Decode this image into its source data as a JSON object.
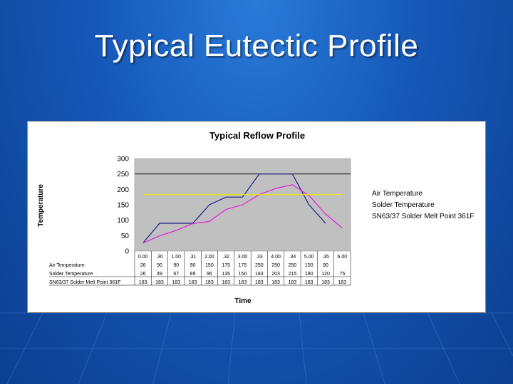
{
  "slide": {
    "title": "Typical Eutectic Profile",
    "background_color": "#1558b8"
  },
  "chart_data": {
    "type": "line",
    "title": "Typical Reflow Profile",
    "xlabel": "Time",
    "ylabel": "Temperature",
    "ylim": [
      0,
      300
    ],
    "yticks": [
      0,
      50,
      100,
      150,
      200,
      250,
      300
    ],
    "grid": false,
    "plot_background": "#c0c0c0",
    "legend_position": "right",
    "categories": [
      "0.00",
      ".30",
      "1.00",
      ".31",
      "2.00",
      ".32",
      "3.00",
      ".33",
      "4.00",
      ".34",
      "5.00",
      ".35",
      "6.00"
    ],
    "series": [
      {
        "name": "Air Temperature",
        "table_label": "Air Temperature",
        "color": "#1c1c8c",
        "values": [
          26,
          90,
          90,
          90,
          150,
          175,
          175,
          250,
          250,
          250,
          150,
          90,
          null
        ]
      },
      {
        "name": "Solder Temperature",
        "table_label": "Solder Temperature",
        "color": "#e020e0",
        "values": [
          26,
          49,
          67,
          89,
          96,
          135,
          150,
          183,
          203,
          215,
          180,
          120,
          75
        ]
      },
      {
        "name": "SN63/37 Solder Melt Point 361F",
        "table_label": "SN63/37 Solder Melt Point 361F",
        "color": "#e8e800",
        "values": [
          183,
          183,
          183,
          183,
          183,
          183,
          183,
          183,
          183,
          183,
          183,
          183,
          183
        ]
      }
    ]
  }
}
